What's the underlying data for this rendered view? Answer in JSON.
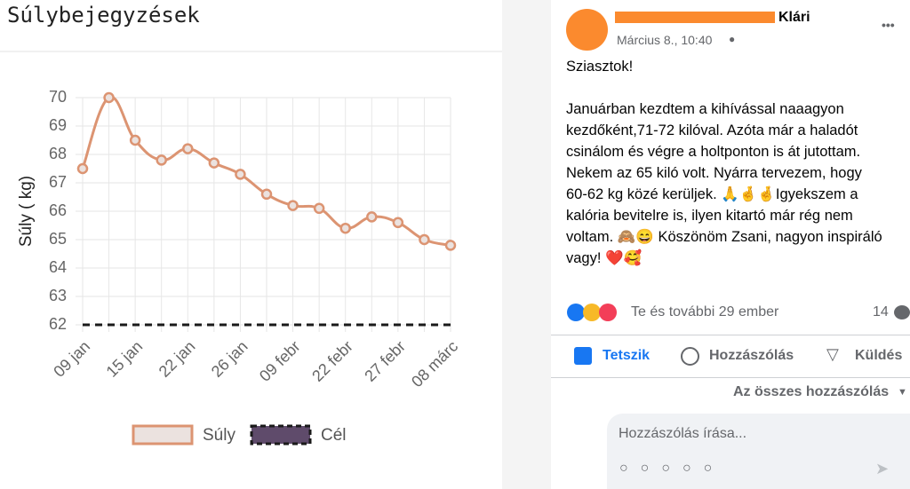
{
  "chart_data": {
    "type": "line",
    "title": "Súlybejegyzések",
    "y_label": "Súly ( kg)",
    "categories": [
      "09 jan",
      null,
      "15 jan",
      null,
      "22 jan",
      null,
      "26 jan",
      null,
      "09 febr",
      null,
      "22 febr",
      null,
      "27 febr",
      null,
      "08 márc"
    ],
    "series": [
      {
        "name": "Súly",
        "color": "#dc9472",
        "fill": "#ebe2df",
        "dash": false,
        "values": [
          67.5,
          70,
          68.5,
          67.8,
          68.2,
          67.7,
          67.3,
          66.6,
          66.2,
          66.1,
          65.4,
          65.8,
          65.6,
          65.0,
          64.8
        ]
      },
      {
        "name": "Cél",
        "color": "#1a1a1a",
        "fill": "#5f4b6b",
        "dash": true,
        "values": [
          62,
          62,
          62,
          62,
          62,
          62,
          62,
          62,
          62,
          62,
          62,
          62,
          62,
          62,
          62
        ]
      }
    ],
    "ylim": [
      62,
      70
    ],
    "yticks": [
      62,
      63,
      64,
      65,
      66,
      67,
      68,
      69,
      70
    ],
    "grid": true,
    "legend": "bottom"
  },
  "post": {
    "author": "Klári",
    "time": "Március 8., 10:40",
    "more": "•••",
    "paragraphs": [
      [
        "Sziasztok!"
      ],
      [
        "Januárban kezdtem a kihívással naaagyon",
        "kezdőként,71-72 kilóval. Azóta már a haladót",
        "csinálom és végre a holtponton is át jutottam.",
        "Nekem az 65 kiló volt. Nyárra tervezem, hogy",
        "60-62 kg közé kerüljek. 🙏🤞🤞Igyekszem a",
        "kalória bevitelre is, ilyen kitartó már rég nem",
        "voltam. 🙈😄 Köszönöm Zsani, nagyon inspiráló",
        "vagy! ❤️🥰"
      ]
    ],
    "reactions": "Te és további 29 ember",
    "comment_count": "14",
    "actions": [
      "Tetszik",
      "Hozzászólás",
      "Küldés"
    ],
    "all_comments": "Az összes hozzászólás",
    "comment_placeholder": "Hozzászólás írása..."
  }
}
